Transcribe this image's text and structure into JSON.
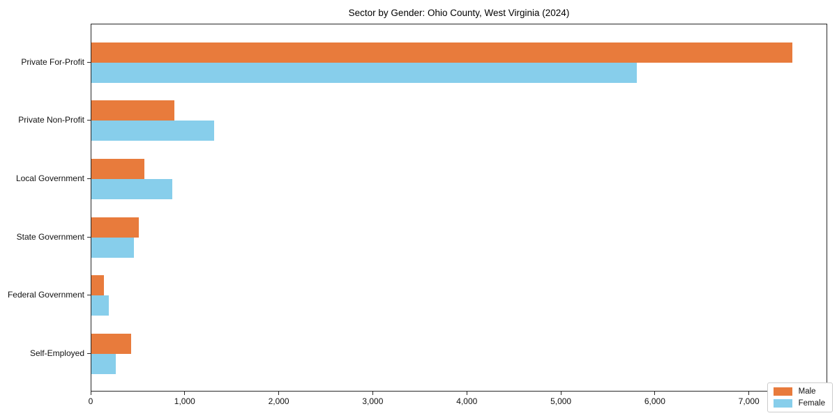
{
  "chart_data": {
    "type": "bar",
    "orientation": "horizontal",
    "title": "Sector by Gender: Ohio County, West Virginia (2024)",
    "categories": [
      "Private For-Profit",
      "Private Non-Profit",
      "Local Government",
      "State Government",
      "Federal Government",
      "Self-Employed"
    ],
    "series": [
      {
        "name": "Male",
        "color": "#E87B3C",
        "values": [
          7455,
          885,
          560,
          505,
          135,
          420
        ]
      },
      {
        "name": "Female",
        "color": "#87CEEB",
        "values": [
          5800,
          1305,
          860,
          455,
          185,
          260
        ]
      }
    ],
    "xlabel": "",
    "ylabel": "",
    "xlim": [
      0,
      7833
    ],
    "x_ticks": [
      0,
      1000,
      2000,
      3000,
      4000,
      5000,
      6000,
      7000
    ],
    "x_tick_labels": [
      "0",
      "1,000",
      "2,000",
      "3,000",
      "4,000",
      "5,000",
      "6,000",
      "7,000"
    ],
    "grid": false,
    "legend_position": "lower right",
    "spine_color": "#262626",
    "background_color": "#ffffff"
  }
}
